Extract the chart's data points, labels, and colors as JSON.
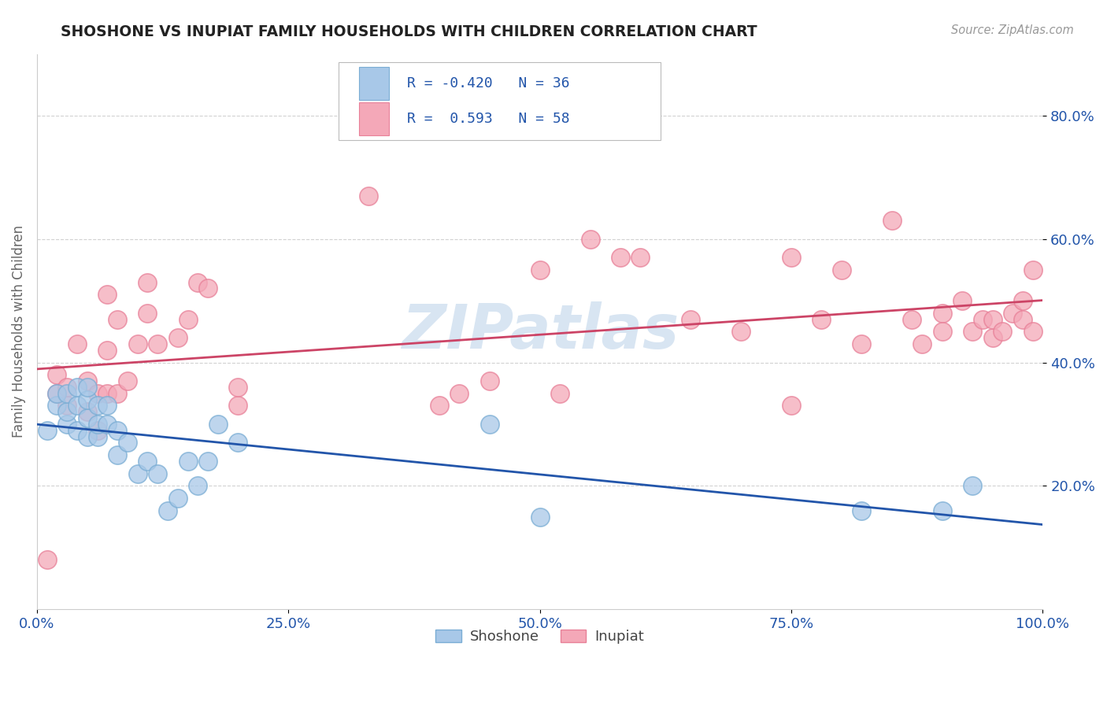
{
  "title": "SHOSHONE VS INUPIAT FAMILY HOUSEHOLDS WITH CHILDREN CORRELATION CHART",
  "source": "Source: ZipAtlas.com",
  "ylabel": "Family Households with Children",
  "xlim": [
    0.0,
    1.0
  ],
  "ylim": [
    0.0,
    0.9
  ],
  "xticks": [
    0.0,
    0.25,
    0.5,
    0.75,
    1.0
  ],
  "xtick_labels": [
    "0.0%",
    "25.0%",
    "50.0%",
    "75.0%",
    "100.0%"
  ],
  "yticks": [
    0.2,
    0.4,
    0.6,
    0.8
  ],
  "ytick_labels": [
    "20.0%",
    "40.0%",
    "60.0%",
    "80.0%"
  ],
  "shoshone_R": -0.42,
  "shoshone_N": 36,
  "inupiat_R": 0.593,
  "inupiat_N": 58,
  "shoshone_color": "#a8c8e8",
  "inupiat_color": "#f4a8b8",
  "shoshone_edge_color": "#7aadd4",
  "inupiat_edge_color": "#e88098",
  "shoshone_line_color": "#2255aa",
  "inupiat_line_color": "#cc4466",
  "legend_R_color": "#2255aa",
  "watermark_color": "#b8d0e8",
  "background_color": "#ffffff",
  "grid_color": "#cccccc",
  "shoshone_x": [
    0.01,
    0.02,
    0.02,
    0.03,
    0.03,
    0.03,
    0.04,
    0.04,
    0.04,
    0.05,
    0.05,
    0.05,
    0.05,
    0.06,
    0.06,
    0.06,
    0.07,
    0.07,
    0.08,
    0.08,
    0.09,
    0.1,
    0.11,
    0.12,
    0.13,
    0.14,
    0.15,
    0.16,
    0.17,
    0.18,
    0.2,
    0.45,
    0.5,
    0.82,
    0.9,
    0.93
  ],
  "shoshone_y": [
    0.29,
    0.33,
    0.35,
    0.3,
    0.32,
    0.35,
    0.29,
    0.33,
    0.36,
    0.28,
    0.31,
    0.34,
    0.36,
    0.28,
    0.3,
    0.33,
    0.3,
    0.33,
    0.25,
    0.29,
    0.27,
    0.22,
    0.24,
    0.22,
    0.16,
    0.18,
    0.24,
    0.2,
    0.24,
    0.3,
    0.27,
    0.3,
    0.15,
    0.16,
    0.16,
    0.2
  ],
  "inupiat_x": [
    0.01,
    0.02,
    0.02,
    0.03,
    0.03,
    0.04,
    0.05,
    0.05,
    0.06,
    0.06,
    0.07,
    0.07,
    0.07,
    0.08,
    0.08,
    0.09,
    0.1,
    0.11,
    0.11,
    0.12,
    0.14,
    0.15,
    0.16,
    0.17,
    0.2,
    0.2,
    0.33,
    0.4,
    0.42,
    0.45,
    0.5,
    0.52,
    0.55,
    0.58,
    0.6,
    0.65,
    0.7,
    0.75,
    0.75,
    0.78,
    0.8,
    0.82,
    0.85,
    0.87,
    0.88,
    0.9,
    0.9,
    0.92,
    0.93,
    0.94,
    0.95,
    0.95,
    0.96,
    0.97,
    0.98,
    0.98,
    0.99,
    0.99
  ],
  "inupiat_y": [
    0.08,
    0.35,
    0.38,
    0.33,
    0.36,
    0.43,
    0.32,
    0.37,
    0.29,
    0.35,
    0.35,
    0.42,
    0.51,
    0.35,
    0.47,
    0.37,
    0.43,
    0.48,
    0.53,
    0.43,
    0.44,
    0.47,
    0.53,
    0.52,
    0.33,
    0.36,
    0.67,
    0.33,
    0.35,
    0.37,
    0.55,
    0.35,
    0.6,
    0.57,
    0.57,
    0.47,
    0.45,
    0.33,
    0.57,
    0.47,
    0.55,
    0.43,
    0.63,
    0.47,
    0.43,
    0.48,
    0.45,
    0.5,
    0.45,
    0.47,
    0.44,
    0.47,
    0.45,
    0.48,
    0.47,
    0.5,
    0.45,
    0.55
  ]
}
